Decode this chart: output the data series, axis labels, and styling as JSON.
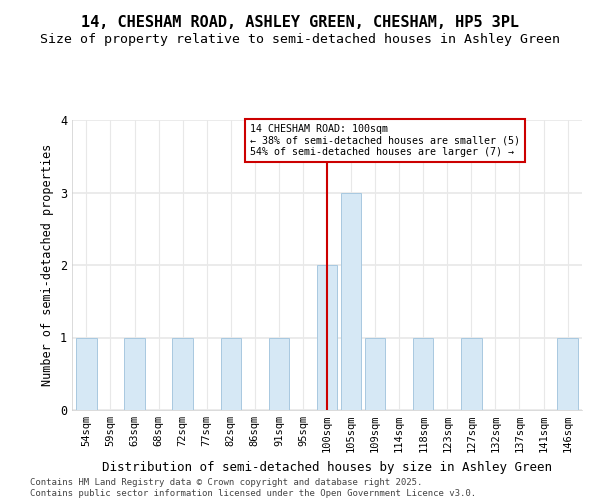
{
  "title": "14, CHESHAM ROAD, ASHLEY GREEN, CHESHAM, HP5 3PL",
  "subtitle": "Size of property relative to semi-detached houses in Ashley Green",
  "xlabel": "Distribution of semi-detached houses by size in Ashley Green",
  "ylabel": "Number of semi-detached properties",
  "categories": [
    "54sqm",
    "59sqm",
    "63sqm",
    "68sqm",
    "72sqm",
    "77sqm",
    "82sqm",
    "86sqm",
    "91sqm",
    "95sqm",
    "100sqm",
    "105sqm",
    "109sqm",
    "114sqm",
    "118sqm",
    "123sqm",
    "127sqm",
    "132sqm",
    "137sqm",
    "141sqm",
    "146sqm"
  ],
  "values": [
    1,
    0,
    1,
    0,
    1,
    0,
    1,
    0,
    1,
    0,
    2,
    3,
    1,
    0,
    1,
    0,
    1,
    0,
    0,
    0,
    1
  ],
  "bar_color": "#d6e8f5",
  "bar_edge_color": "#a8c8e0",
  "highlight_index": 10,
  "highlight_line_color": "#cc0000",
  "annotation_text": "14 CHESHAM ROAD: 100sqm\n← 38% of semi-detached houses are smaller (5)\n54% of semi-detached houses are larger (7) →",
  "annotation_box_color": "#cc0000",
  "ylim": [
    0,
    4
  ],
  "yticks": [
    0,
    1,
    2,
    3,
    4
  ],
  "footer_text": "Contains HM Land Registry data © Crown copyright and database right 2025.\nContains public sector information licensed under the Open Government Licence v3.0.",
  "bg_color": "#ffffff",
  "plot_bg_color": "#ffffff",
  "grid_color": "#e8e8e8",
  "title_fontsize": 11,
  "subtitle_fontsize": 9.5,
  "axis_label_fontsize": 8.5,
  "tick_fontsize": 7.5,
  "footer_fontsize": 6.5
}
